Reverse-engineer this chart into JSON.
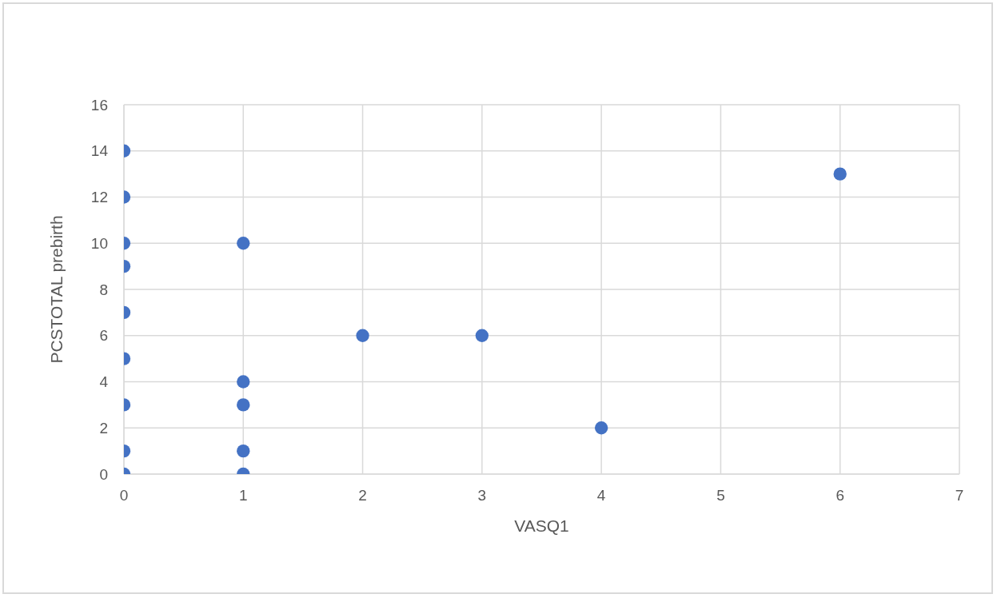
{
  "chart_data": {
    "type": "scatter",
    "xlabel": "VASQ1",
    "ylabel": "PCSTOTAL prebirth",
    "x": [
      0,
      0,
      0,
      0,
      0,
      0,
      0,
      0,
      0,
      1,
      1,
      1,
      1,
      1,
      2,
      3,
      4,
      6
    ],
    "values": [
      14,
      12,
      10,
      9,
      7,
      5,
      3,
      1,
      0,
      10,
      4,
      3,
      1,
      0,
      6,
      6,
      2,
      13
    ],
    "color": "#4472c4",
    "marker": "circle",
    "xlim": [
      0,
      7
    ],
    "xticks": [
      0,
      1,
      2,
      3,
      4,
      5,
      6,
      7
    ],
    "ylim": [
      0,
      16
    ],
    "yticks": [
      0,
      2,
      4,
      6,
      8,
      10,
      12,
      14,
      16
    ],
    "grid": true
  }
}
